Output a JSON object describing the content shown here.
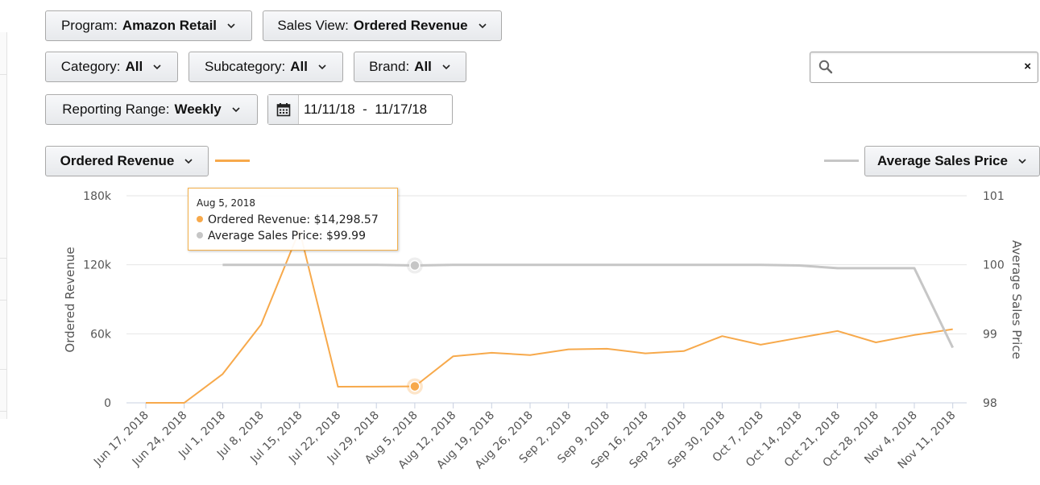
{
  "filters": {
    "program": {
      "label": "Program:",
      "value": "Amazon Retail"
    },
    "sales_view": {
      "label": "Sales View:",
      "value": "Ordered Revenue"
    },
    "category": {
      "label": "Category:",
      "value": "All"
    },
    "subcategory": {
      "label": "Subcategory:",
      "value": "All"
    },
    "brand": {
      "label": "Brand:",
      "value": "All"
    },
    "reporting_range": {
      "label": "Reporting Range:",
      "value": "Weekly"
    },
    "date_range": "11/11/18  -  11/17/18"
  },
  "search": {
    "value": "",
    "placeholder": "",
    "clear_label": "×"
  },
  "metric_left": {
    "label": "Ordered Revenue",
    "color": "#f7a94b"
  },
  "metric_right": {
    "label": "Average Sales Price",
    "color": "#c6c6c6"
  },
  "tooltip": {
    "date": "Aug 5, 2018",
    "rows": [
      {
        "label": "Ordered Revenue:",
        "value": "$14,298.57",
        "color": "#f7a94b"
      },
      {
        "label": "Average Sales Price:",
        "value": "$99.99",
        "color": "#c6c6c6"
      }
    ]
  },
  "chart_data": {
    "type": "line",
    "x": [
      "Jun 17, 2018",
      "Jun 24, 2018",
      "Jul 1, 2018",
      "Jul 8, 2018",
      "Jul 15, 2018",
      "Jul 22, 2018",
      "Jul 29, 2018",
      "Aug 5, 2018",
      "Aug 12, 2018",
      "Aug 19, 2018",
      "Aug 26, 2018",
      "Sep 2, 2018",
      "Sep 9, 2018",
      "Sep 16, 2018",
      "Sep 23, 2018",
      "Sep 30, 2018",
      "Oct 7, 2018",
      "Oct 14, 2018",
      "Oct 21, 2018",
      "Oct 28, 2018",
      "Nov 4, 2018",
      "Nov 11, 2018"
    ],
    "series": [
      {
        "name": "Ordered Revenue",
        "axis": "left",
        "color": "#f7a94b",
        "values": [
          0,
          0,
          25000,
          68000,
          150000,
          14000,
          14100,
          14298.57,
          40500,
          43500,
          41500,
          46500,
          47000,
          43000,
          45000,
          58000,
          50500,
          56500,
          62500,
          52500,
          59000,
          64000
        ]
      },
      {
        "name": "Average Sales Price",
        "axis": "right",
        "color": "#c6c6c6",
        "values": [
          null,
          null,
          100,
          100,
          100,
          100,
          100,
          99.99,
          100,
          100,
          100,
          100,
          100,
          100,
          100,
          100,
          100,
          99.99,
          99.95,
          99.95,
          99.95,
          98.8
        ]
      }
    ],
    "ylabel": "Ordered Revenue",
    "y2label": "Average Sales Price",
    "ylim": [
      0,
      180000
    ],
    "y2lim": [
      98,
      101
    ],
    "yticks": [
      "0",
      "60k",
      "120k",
      "180k"
    ],
    "y2ticks": [
      "98",
      "99",
      "100",
      "101"
    ],
    "highlight_index": 7,
    "grid": true
  }
}
